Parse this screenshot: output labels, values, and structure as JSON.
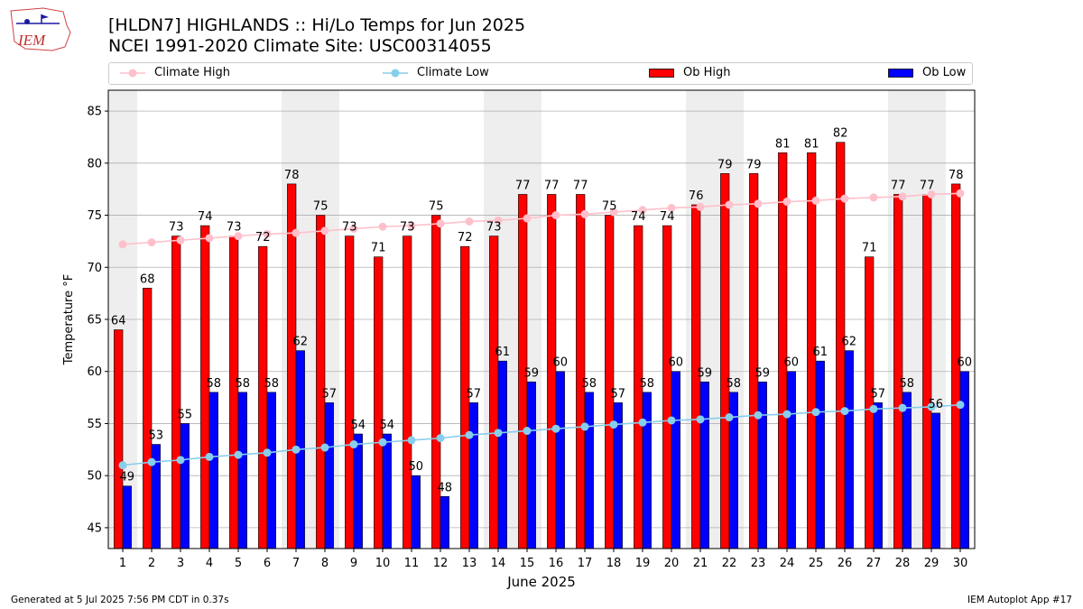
{
  "header": {
    "logo_text": "IEM",
    "title_line1": "[HLDN7] HIGHLANDS :: Hi/Lo Temps for Jun 2025",
    "title_line2": "NCEI 1991-2020 Climate Site: USC00314055"
  },
  "colors": {
    "climate_high": "#ffc0cb",
    "climate_low": "#87ceeb",
    "ob_high": "#ff0000",
    "ob_low": "#0000ff",
    "weekend_shade": "#eeeeee",
    "grid": "#b0b0b0"
  },
  "footer": {
    "left": "Generated at 5 Jul 2025 7:56 PM CDT in 0.37s",
    "right": "IEM Autoplot App #17"
  },
  "chart_data": {
    "type": "bar",
    "title": "[HLDN7] HIGHLANDS :: Hi/Lo Temps for Jun 2025",
    "subtitle": "NCEI 1991-2020 Climate Site: USC00314055",
    "xlabel": "June 2025",
    "ylabel": "Temperature °F",
    "ylim": [
      43,
      87
    ],
    "yticks": [
      45,
      50,
      55,
      60,
      65,
      70,
      75,
      80,
      85
    ],
    "grid": true,
    "legend_position": "top",
    "legend": [
      "Climate High",
      "Climate Low",
      "Ob High",
      "Ob Low"
    ],
    "categories": [
      "1",
      "2",
      "3",
      "4",
      "5",
      "6",
      "7",
      "8",
      "9",
      "10",
      "11",
      "12",
      "13",
      "14",
      "15",
      "16",
      "17",
      "18",
      "19",
      "20",
      "21",
      "22",
      "23",
      "24",
      "25",
      "26",
      "27",
      "28",
      "29",
      "30"
    ],
    "shaded_days": [
      1,
      7,
      8,
      14,
      15,
      21,
      22,
      28,
      29
    ],
    "series": [
      {
        "name": "Ob High",
        "kind": "bar",
        "values": [
          64,
          68,
          73,
          74,
          73,
          72,
          78,
          75,
          73,
          71,
          73,
          75,
          72,
          73,
          77,
          77,
          77,
          75,
          74,
          74,
          76,
          79,
          79,
          81,
          81,
          82,
          71,
          77,
          77,
          78
        ]
      },
      {
        "name": "Ob Low",
        "kind": "bar",
        "values": [
          49,
          53,
          55,
          58,
          58,
          58,
          62,
          57,
          54,
          54,
          50,
          48,
          57,
          61,
          59,
          60,
          58,
          57,
          58,
          60,
          59,
          58,
          59,
          60,
          61,
          62,
          57,
          58,
          56,
          60
        ]
      },
      {
        "name": "Climate High",
        "kind": "line",
        "values": [
          72.2,
          72.4,
          72.6,
          72.8,
          73.0,
          73.2,
          73.3,
          73.5,
          73.7,
          73.9,
          74.0,
          74.2,
          74.4,
          74.5,
          74.7,
          75.0,
          75.1,
          75.3,
          75.5,
          75.7,
          75.8,
          76.0,
          76.1,
          76.3,
          76.4,
          76.6,
          76.7,
          76.8,
          77.0,
          77.1
        ]
      },
      {
        "name": "Climate Low",
        "kind": "line",
        "values": [
          51.0,
          51.3,
          51.5,
          51.8,
          52.0,
          52.2,
          52.5,
          52.7,
          53.0,
          53.2,
          53.4,
          53.6,
          53.9,
          54.1,
          54.3,
          54.5,
          54.7,
          54.9,
          55.1,
          55.3,
          55.4,
          55.6,
          55.8,
          55.9,
          56.1,
          56.2,
          56.4,
          56.5,
          56.6,
          56.8
        ]
      }
    ]
  }
}
